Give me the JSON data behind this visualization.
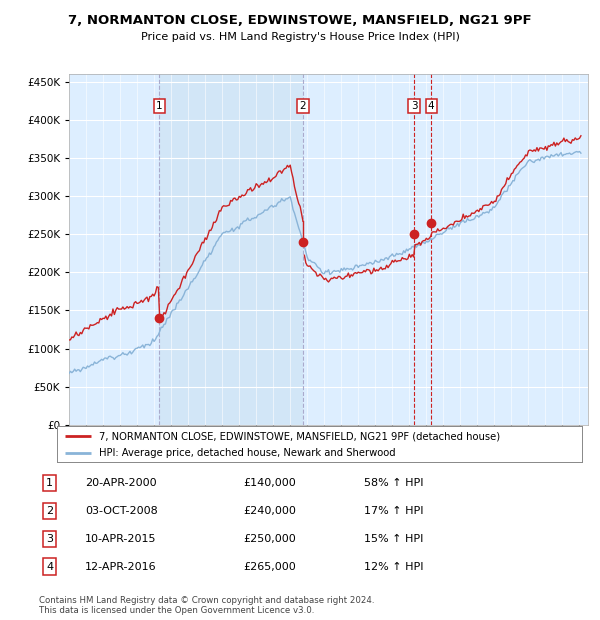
{
  "title": "7, NORMANTON CLOSE, EDWINSTOWE, MANSFIELD, NG21 9PF",
  "subtitle": "Price paid vs. HM Land Registry's House Price Index (HPI)",
  "hpi_label": "HPI: Average price, detached house, Newark and Sherwood",
  "price_label": "7, NORMANTON CLOSE, EDWINSTOWE, MANSFIELD, NG21 9PF (detached house)",
  "footer1": "Contains HM Land Registry data © Crown copyright and database right 2024.",
  "footer2": "This data is licensed under the Open Government Licence v3.0.",
  "transactions": [
    {
      "num": 1,
      "date": "20-APR-2000",
      "price": "£140,000",
      "change": "58% ↑ HPI",
      "year": 2000.3,
      "price_val": 140000
    },
    {
      "num": 2,
      "date": "03-OCT-2008",
      "price": "£240,000",
      "change": "17% ↑ HPI",
      "year": 2008.75,
      "price_val": 240000
    },
    {
      "num": 3,
      "date": "10-APR-2015",
      "price": "£250,000",
      "change": "15% ↑ HPI",
      "year": 2015.28,
      "price_val": 250000
    },
    {
      "num": 4,
      "date": "12-APR-2016",
      "price": "£265,000",
      "change": "12% ↑ HPI",
      "year": 2016.28,
      "price_val": 265000
    }
  ],
  "hpi_color": "#8ab4d8",
  "price_color": "#cc2222",
  "vline_color_gray": "#aaaacc",
  "vline_color_red": "#cc2222",
  "background_plot": "#ddeeff",
  "shade_color": "#c8d8ee",
  "ylim": [
    0,
    460000
  ],
  "xlim_start": 1995,
  "xlim_end": 2025.5,
  "yticks": [
    0,
    50000,
    100000,
    150000,
    200000,
    250000,
    300000,
    350000,
    400000,
    450000
  ]
}
